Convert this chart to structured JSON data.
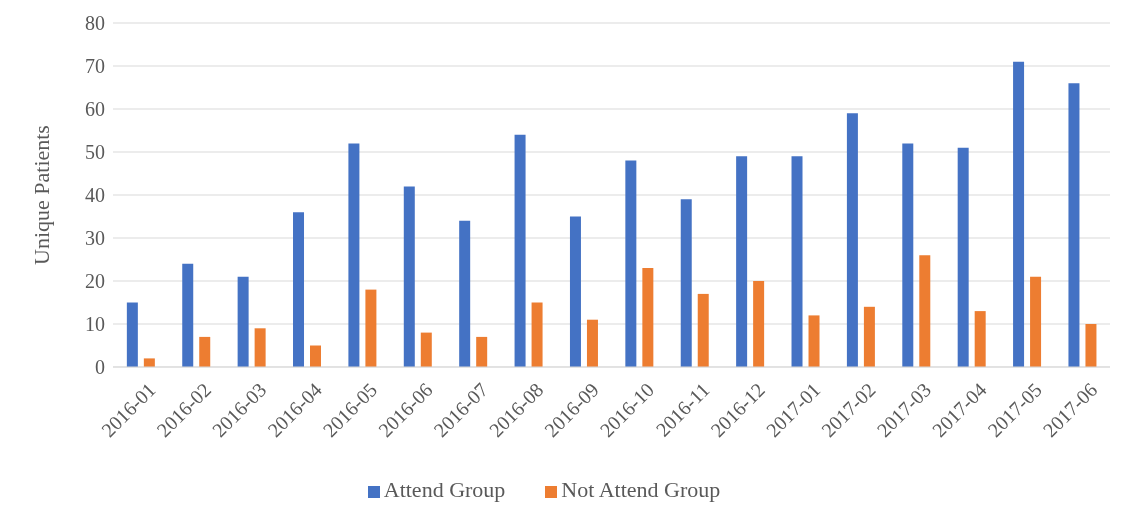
{
  "chart_data": {
    "type": "bar",
    "ylabel": "Unique Patients",
    "categories": [
      "2016-01",
      "2016-02",
      "2016-03",
      "2016-04",
      "2016-05",
      "2016-06",
      "2016-07",
      "2016-08",
      "2016-09",
      "2016-10",
      "2016-11",
      "2016-12",
      "2017-01",
      "2017-02",
      "2017-03",
      "2017-04",
      "2017-05",
      "2017-06"
    ],
    "series": [
      {
        "name": "Attend Group",
        "color": "#4472c4",
        "values": [
          15,
          24,
          21,
          36,
          52,
          42,
          34,
          54,
          35,
          48,
          39,
          49,
          49,
          59,
          52,
          51,
          71,
          66
        ]
      },
      {
        "name": "Not Attend Group",
        "color": "#ed7d31",
        "values": [
          2,
          7,
          9,
          5,
          18,
          8,
          7,
          15,
          11,
          23,
          17,
          20,
          12,
          14,
          26,
          13,
          21,
          10
        ]
      }
    ],
    "ylim": [
      0,
      80
    ],
    "yticks": [
      0,
      10,
      20,
      30,
      40,
      50,
      60,
      70,
      80
    ],
    "grid": "y",
    "legend": "bottom"
  }
}
